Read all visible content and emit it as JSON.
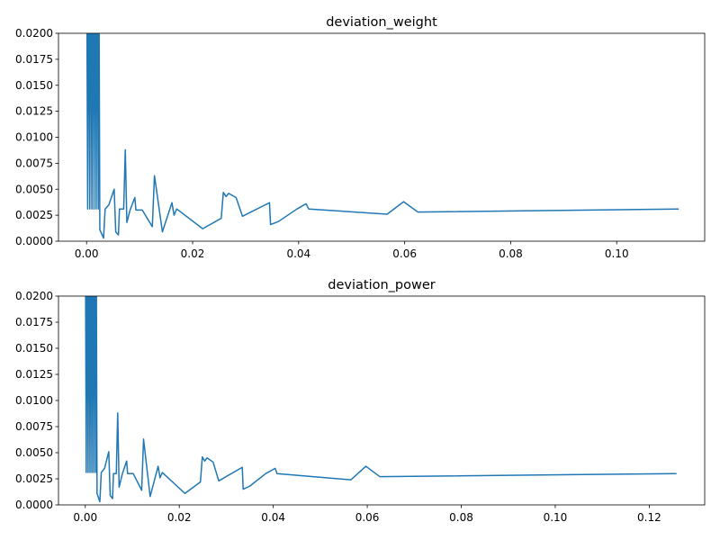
{
  "chart_data": [
    {
      "type": "line",
      "title": "deviation_weight",
      "color": "#1f77b4",
      "x": [
        0,
        0.0002,
        0.0004,
        0.0006,
        0.0008,
        0.001,
        0.0012,
        0.0014,
        0.0016,
        0.0018,
        0.002,
        0.0022,
        0.0023,
        0.0025,
        0.0032,
        0.0035,
        0.0042,
        0.0052,
        0.0055,
        0.006,
        0.0062,
        0.007,
        0.0073,
        0.0076,
        0.0082,
        0.0091,
        0.0093,
        0.0105,
        0.0124,
        0.0128,
        0.0143,
        0.0161,
        0.0165,
        0.017,
        0.0219,
        0.0254,
        0.0258,
        0.0263,
        0.0268,
        0.0282,
        0.0294,
        0.0345,
        0.0347,
        0.0362,
        0.0397,
        0.0414,
        0.0419,
        0.0567,
        0.0598,
        0.0625,
        0.1117
      ],
      "values": [
        0.03,
        0.0031,
        0.03,
        0.0031,
        0.03,
        0.0031,
        0.03,
        0.0031,
        0.03,
        0.0031,
        0.03,
        0.0031,
        0.03,
        0.0011,
        0.0003,
        0.0031,
        0.0035,
        0.005,
        0.0009,
        0.0006,
        0.0031,
        0.0031,
        0.0088,
        0.0018,
        0.003,
        0.0042,
        0.003,
        0.003,
        0.0014,
        0.0063,
        0.0009,
        0.0037,
        0.0025,
        0.0031,
        0.0012,
        0.0022,
        0.0047,
        0.0043,
        0.0046,
        0.0042,
        0.0024,
        0.0037,
        0.0016,
        0.0019,
        0.0031,
        0.0036,
        0.0031,
        0.0026,
        0.0038,
        0.0028,
        0.0031
      ],
      "xlim": [
        -0.0053,
        0.1166
      ],
      "ylim": [
        0,
        0.02
      ],
      "xticks": [
        {
          "value": 0,
          "label": "0.00"
        },
        {
          "value": 0.02,
          "label": "0.02"
        },
        {
          "value": 0.04,
          "label": "0.04"
        },
        {
          "value": 0.06,
          "label": "0.06"
        },
        {
          "value": 0.08,
          "label": "0.08"
        },
        {
          "value": 0.1,
          "label": "0.10"
        }
      ],
      "yticks": [
        {
          "value": 0,
          "label": "0.0000"
        },
        {
          "value": 0.0025,
          "label": "0.0025"
        },
        {
          "value": 0.005,
          "label": "0.0050"
        },
        {
          "value": 0.0075,
          "label": "0.0075"
        },
        {
          "value": 0.01,
          "label": "0.0100"
        },
        {
          "value": 0.0125,
          "label": "0.0125"
        },
        {
          "value": 0.015,
          "label": "0.0150"
        },
        {
          "value": 0.0175,
          "label": "0.0175"
        },
        {
          "value": 0.02,
          "label": "0.0200"
        }
      ]
    },
    {
      "type": "line",
      "title": "deviation_power",
      "color": "#1f77b4",
      "x": [
        0,
        0.0002,
        0.0004,
        0.0006,
        0.0008,
        0.001,
        0.0012,
        0.0014,
        0.0016,
        0.0018,
        0.002,
        0.0022,
        0.0023,
        0.0025,
        0.0031,
        0.0034,
        0.0041,
        0.005,
        0.0053,
        0.0058,
        0.006,
        0.0066,
        0.0069,
        0.0072,
        0.0079,
        0.0088,
        0.009,
        0.0102,
        0.012,
        0.0124,
        0.0138,
        0.0155,
        0.0159,
        0.0164,
        0.0212,
        0.0245,
        0.0249,
        0.0254,
        0.0259,
        0.0272,
        0.0284,
        0.0334,
        0.0336,
        0.035,
        0.0384,
        0.0404,
        0.0408,
        0.0565,
        0.0597,
        0.0627,
        0.1258
      ],
      "values": [
        0.03,
        0.0031,
        0.03,
        0.0031,
        0.03,
        0.0031,
        0.03,
        0.0031,
        0.03,
        0.0031,
        0.03,
        0.0031,
        0.03,
        0.0011,
        0.0003,
        0.0031,
        0.0035,
        0.0051,
        0.0009,
        0.0006,
        0.003,
        0.003,
        0.0088,
        0.0017,
        0.003,
        0.0042,
        0.003,
        0.003,
        0.0014,
        0.0063,
        0.0008,
        0.0037,
        0.0026,
        0.0031,
        0.0011,
        0.0022,
        0.0046,
        0.0042,
        0.0045,
        0.0041,
        0.0023,
        0.0036,
        0.0015,
        0.0018,
        0.003,
        0.0035,
        0.003,
        0.0024,
        0.0037,
        0.0027,
        0.003
      ],
      "xlim": [
        -0.0057,
        0.1318
      ],
      "ylim": [
        0,
        0.02
      ],
      "xticks": [
        {
          "value": 0,
          "label": "0.00"
        },
        {
          "value": 0.02,
          "label": "0.02"
        },
        {
          "value": 0.04,
          "label": "0.04"
        },
        {
          "value": 0.06,
          "label": "0.06"
        },
        {
          "value": 0.08,
          "label": "0.08"
        },
        {
          "value": 0.1,
          "label": "0.10"
        },
        {
          "value": 0.12,
          "label": "0.12"
        }
      ],
      "yticks": [
        {
          "value": 0,
          "label": "0.0000"
        },
        {
          "value": 0.0025,
          "label": "0.0025"
        },
        {
          "value": 0.005,
          "label": "0.0050"
        },
        {
          "value": 0.0075,
          "label": "0.0075"
        },
        {
          "value": 0.01,
          "label": "0.0100"
        },
        {
          "value": 0.0125,
          "label": "0.0125"
        },
        {
          "value": 0.015,
          "label": "0.0150"
        },
        {
          "value": 0.0175,
          "label": "0.0175"
        },
        {
          "value": 0.02,
          "label": "0.0200"
        }
      ]
    }
  ]
}
